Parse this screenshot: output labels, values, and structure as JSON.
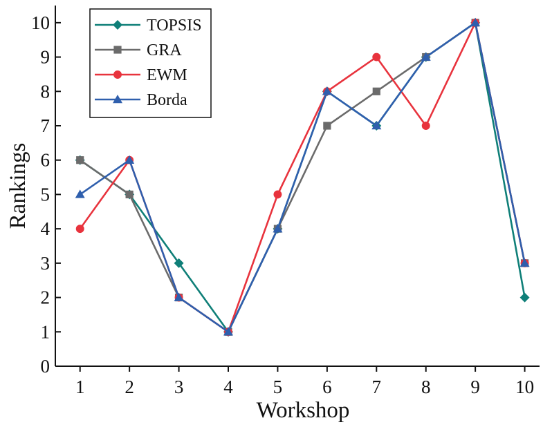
{
  "chart_data": {
    "type": "line",
    "title": "",
    "xlabel": "Workshop",
    "ylabel": "Rankings",
    "x": [
      1,
      2,
      3,
      4,
      5,
      6,
      7,
      8,
      9,
      10
    ],
    "xlim": [
      0.5,
      10.3
    ],
    "ylim": [
      0,
      10.5
    ],
    "yticks": [
      0,
      1,
      2,
      3,
      4,
      5,
      6,
      7,
      8,
      9,
      10
    ],
    "grid": false,
    "legend_position": "top-left",
    "series": [
      {
        "name": "TOPSIS",
        "marker": "diamond",
        "color": "#0f7f78",
        "values": [
          6,
          5,
          3,
          1,
          4,
          8,
          7,
          9,
          10,
          2
        ]
      },
      {
        "name": "GRA",
        "marker": "square",
        "color": "#6b6b6b",
        "values": [
          6,
          5,
          2,
          1,
          4,
          7,
          8,
          9,
          10,
          3
        ]
      },
      {
        "name": "EWM",
        "marker": "circle",
        "color": "#e8333d",
        "values": [
          4,
          6,
          2,
          1,
          5,
          8,
          9,
          7,
          10,
          3
        ]
      },
      {
        "name": "Borda",
        "marker": "triangle",
        "color": "#2f5fad",
        "values": [
          5,
          6,
          2,
          1,
          4,
          8,
          7,
          9,
          10,
          3
        ]
      }
    ]
  }
}
